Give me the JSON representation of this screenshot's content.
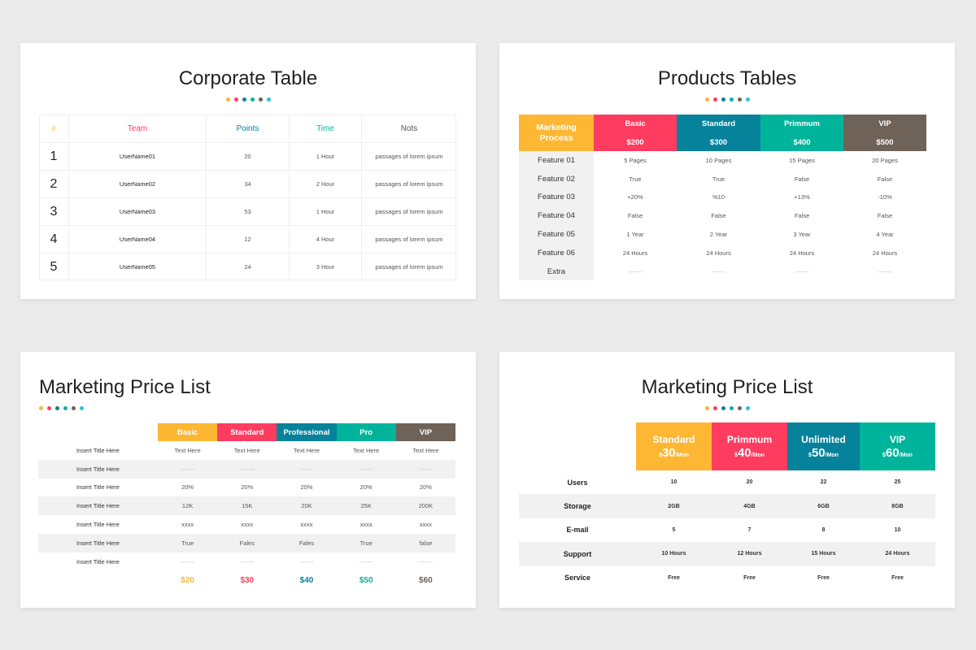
{
  "colors": {
    "yellow": "#fdb733",
    "red": "#fe3c60",
    "teal": "#06829a",
    "green": "#00b49c",
    "brown": "#6f6259",
    "cyan": "#2ac0dc"
  },
  "corporate": {
    "title": "Corporate Table",
    "headers": [
      "#",
      "Team",
      "Points",
      "Time",
      "Nots"
    ],
    "rows": [
      [
        "1",
        "UserName01",
        "20",
        "1 Hour",
        "passages of lorem ipsum"
      ],
      [
        "2",
        "UserName02",
        "34",
        "2 Hour",
        "passages of lorem ipsum"
      ],
      [
        "3",
        "UserName03",
        "53",
        "1 Hour",
        "passages of lorem ipsum"
      ],
      [
        "4",
        "UserName04",
        "12",
        "4 Hour",
        "passages of lorem ipsum"
      ],
      [
        "5",
        "UserName05",
        "24",
        "3 Hour",
        "passages of lorem ipsum"
      ]
    ]
  },
  "products": {
    "title": "Products Tables",
    "corner": "Marketing Process",
    "plans": [
      {
        "name": "Basic",
        "price": "$200"
      },
      {
        "name": "Standard",
        "price": "$300"
      },
      {
        "name": "Primmum",
        "price": "$400"
      },
      {
        "name": "VIP",
        "price": "$500"
      }
    ],
    "rows": [
      {
        "label": "Feature 01",
        "values": [
          "5 Pages",
          "10 Pages",
          "15 Pages",
          "20 Pages"
        ]
      },
      {
        "label": "Feature 02",
        "values": [
          "True",
          "True",
          "False",
          "False"
        ]
      },
      {
        "label": "Feature 03",
        "values": [
          "+20%",
          "%10",
          "+13%",
          "-10%"
        ]
      },
      {
        "label": "Feature 04",
        "values": [
          "False",
          "False",
          "False",
          "False"
        ]
      },
      {
        "label": "Feature 05",
        "values": [
          "1 Year",
          "2 Year",
          "3 Year",
          "4 Year"
        ]
      },
      {
        "label": "Feature 06",
        "values": [
          "24 Hours",
          "24 Hours",
          "24 Hours",
          "24 Hours"
        ]
      },
      {
        "label": "Extra",
        "values": [
          "-------",
          "-------",
          "-------",
          "-------"
        ]
      }
    ]
  },
  "pricelist1": {
    "title": "Marketing Price List",
    "plans": [
      "Basic",
      "Standard",
      "Professional",
      "Pro",
      "VIP"
    ],
    "rows": [
      {
        "label": "Insert Title Here",
        "values": [
          "Text Here",
          "Text Here",
          "Text Here",
          "Text Here",
          "Text Here"
        ]
      },
      {
        "label": "Insert Title Here",
        "values": [
          "-------",
          "-------",
          "-------",
          "-------",
          "-------"
        ]
      },
      {
        "label": "Insert Title Here",
        "values": [
          "20%",
          "20%",
          "20%",
          "20%",
          "20%"
        ]
      },
      {
        "label": "Insert Title Here",
        "values": [
          "12K",
          "15K",
          "20K",
          "25K",
          "200K"
        ]
      },
      {
        "label": "Insert Title Here",
        "values": [
          "xxxx",
          "xxxx",
          "xxxx",
          "xxxx",
          "xxxx"
        ]
      },
      {
        "label": "Insert Title Here",
        "values": [
          "True",
          "Fales",
          "Fales",
          "True",
          "false"
        ]
      },
      {
        "label": "Insert Title Here",
        "values": [
          "-------",
          "-------",
          "-------",
          "-------",
          "-------"
        ]
      }
    ],
    "prices": [
      "$20",
      "$30",
      "$40",
      "$50",
      "$60"
    ]
  },
  "pricelist2": {
    "title": "Marketing Price List",
    "currency": "$",
    "per": "/Mon",
    "plans": [
      {
        "name": "Standard",
        "price": "30"
      },
      {
        "name": "Primmum",
        "price": "40"
      },
      {
        "name": "Unlimited",
        "price": "50"
      },
      {
        "name": "VIP",
        "price": "60"
      }
    ],
    "rows": [
      {
        "label": "Users",
        "values": [
          "10",
          "20",
          "22",
          "25"
        ]
      },
      {
        "label": "Storage",
        "values": [
          "2GB",
          "4GB",
          "6GB",
          "8GB"
        ]
      },
      {
        "label": "E-mail",
        "values": [
          "5",
          "7",
          "8",
          "10"
        ]
      },
      {
        "label": "Support",
        "values": [
          "10 Hours",
          "12 Hours",
          "15 Hours",
          "24 Hours"
        ]
      },
      {
        "label": "Service",
        "values": [
          "Free",
          "Free",
          "Free",
          "Free"
        ]
      }
    ]
  }
}
